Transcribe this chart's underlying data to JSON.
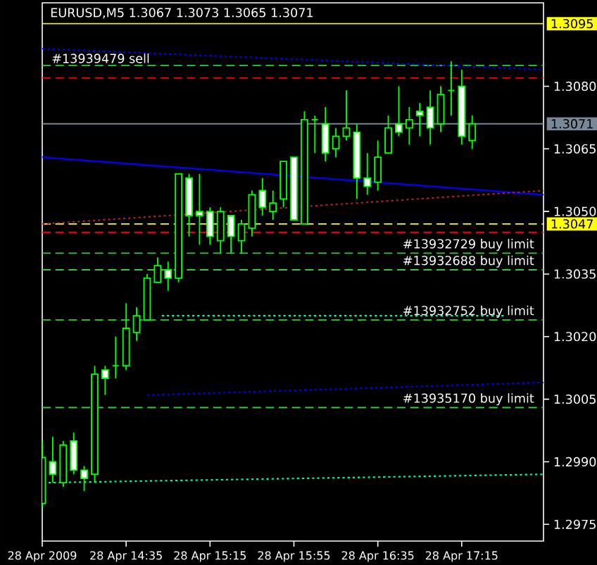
{
  "chart_data": {
    "type": "candlestick",
    "title": "EURUSD,M5  1.3067 1.3073 1.3065 1.3071",
    "color": "#00ff00",
    "x": [
      "2009-04-28T13:55",
      "2009-04-28T14:00",
      "2009-04-28T14:05",
      "2009-04-28T14:10",
      "2009-04-28T14:15",
      "2009-04-28T14:20",
      "2009-04-28T14:25",
      "2009-04-28T14:30",
      "2009-04-28T14:35",
      "2009-04-28T14:40",
      "2009-04-28T14:45",
      "2009-04-28T14:50",
      "2009-04-28T14:55",
      "2009-04-28T15:00",
      "2009-04-28T15:05",
      "2009-04-28T15:10",
      "2009-04-28T15:15",
      "2009-04-28T15:20",
      "2009-04-28T15:25",
      "2009-04-28T15:30",
      "2009-04-28T15:35",
      "2009-04-28T15:40",
      "2009-04-28T15:45",
      "2009-04-28T15:50",
      "2009-04-28T15:55",
      "2009-04-28T16:00",
      "2009-04-28T16:05",
      "2009-04-28T16:10",
      "2009-04-28T16:15",
      "2009-04-28T16:20",
      "2009-04-28T16:25",
      "2009-04-28T16:30",
      "2009-04-28T16:35",
      "2009-04-28T16:40",
      "2009-04-28T16:45",
      "2009-04-28T16:50",
      "2009-04-28T16:55",
      "2009-04-28T17:00",
      "2009-04-28T17:05",
      "2009-04-28T17:10",
      "2009-04-28T17:15",
      "2009-04-28T17:20"
    ],
    "ohlc": [
      [
        1.298,
        1.2995,
        1.2979,
        1.2991
      ],
      [
        1.299,
        1.2996,
        1.2985,
        1.2987
      ],
      [
        1.2985,
        1.2995,
        1.2984,
        1.2994
      ],
      [
        1.2995,
        1.2997,
        1.2987,
        1.2988
      ],
      [
        1.2988,
        1.2989,
        1.2983,
        1.2986
      ],
      [
        1.2987,
        1.3013,
        1.2985,
        1.3011
      ],
      [
        1.3012,
        1.3013,
        1.3006,
        1.301
      ],
      [
        1.3013,
        1.302,
        1.301,
        1.3013
      ],
      [
        1.3013,
        1.3028,
        1.3012,
        1.3022
      ],
      [
        1.3021,
        1.3027,
        1.3019,
        1.3025
      ],
      [
        1.3024,
        1.3035,
        1.3024,
        1.3034
      ],
      [
        1.3033,
        1.3039,
        1.3033,
        1.3037
      ],
      [
        1.3036,
        1.3038,
        1.3031,
        1.3034
      ],
      [
        1.3034,
        1.3059,
        1.3033,
        1.3059
      ],
      [
        1.3058,
        1.3059,
        1.3044,
        1.3049
      ],
      [
        1.305,
        1.3059,
        1.3042,
        1.3049
      ],
      [
        1.305,
        1.3051,
        1.3042,
        1.3044
      ],
      [
        1.3043,
        1.3051,
        1.304,
        1.305
      ],
      [
        1.3049,
        1.3049,
        1.304,
        1.3044
      ],
      [
        1.3043,
        1.3048,
        1.304,
        1.3047
      ],
      [
        1.3046,
        1.3055,
        1.3044,
        1.3054
      ],
      [
        1.3055,
        1.3058,
        1.3049,
        1.3051
      ],
      [
        1.305,
        1.3055,
        1.3048,
        1.3052
      ],
      [
        1.3053,
        1.3062,
        1.3051,
        1.3062
      ],
      [
        1.3063,
        1.3063,
        1.3048,
        1.3048
      ],
      [
        1.3047,
        1.3074,
        1.3047,
        1.3072
      ],
      [
        1.3072,
        1.3073,
        1.3064,
        1.3072
      ],
      [
        1.3071,
        1.3075,
        1.3062,
        1.3064
      ],
      [
        1.3065,
        1.307,
        1.3063,
        1.3068
      ],
      [
        1.3068,
        1.3079,
        1.3067,
        1.307
      ],
      [
        1.3069,
        1.3071,
        1.3053,
        1.3058
      ],
      [
        1.3058,
        1.3064,
        1.3054,
        1.3056
      ],
      [
        1.3057,
        1.3067,
        1.3055,
        1.3063
      ],
      [
        1.3064,
        1.3073,
        1.3064,
        1.307
      ],
      [
        1.3071,
        1.308,
        1.3068,
        1.3069
      ],
      [
        1.307,
        1.3075,
        1.3066,
        1.3072
      ],
      [
        1.3074,
        1.3076,
        1.3068,
        1.3073
      ],
      [
        1.3075,
        1.3079,
        1.3066,
        1.307
      ],
      [
        1.3071,
        1.308,
        1.3069,
        1.3078
      ],
      [
        1.3079,
        1.3086,
        1.3073,
        1.3079
      ],
      [
        1.308,
        1.3084,
        1.3066,
        1.3068
      ],
      [
        1.3067,
        1.3073,
        1.3065,
        1.3071
      ]
    ],
    "series": [
      {
        "type": "line",
        "color": "#0000ff",
        "line_style": "solid",
        "x": [
          "2009-04-28T13:55",
          "2009-04-28T17:54"
        ],
        "values": [
          1.3063,
          1.3054
        ]
      },
      {
        "type": "line",
        "color": "#0000ff",
        "line_style": "dotted",
        "x": [
          "2009-04-28T13:55",
          "2009-04-28T17:54"
        ],
        "values": [
          1.3089,
          1.3084
        ]
      },
      {
        "type": "line",
        "color": "#b22222",
        "line_style": "dotted",
        "x": [
          "2009-04-28T13:55",
          "2009-04-28T17:54"
        ],
        "values": [
          1.3047,
          1.3055
        ]
      },
      {
        "type": "line",
        "color": "#00fa9a",
        "line_style": "dotted",
        "x": [
          "2009-04-28T14:52",
          "2009-04-28T17:36"
        ],
        "values": [
          1.3025,
          1.3025
        ]
      },
      {
        "type": "line",
        "color": "#0000ff",
        "line_style": "dotted",
        "x": [
          "2009-04-28T14:45",
          "2009-04-28T17:54"
        ],
        "values": [
          1.3006,
          1.3009
        ]
      },
      {
        "type": "line",
        "color": "#00fa9a",
        "line_style": "dotted",
        "x": [
          "2009-04-28T13:58",
          "2009-04-28T17:54"
        ],
        "values": [
          1.2985,
          1.2987
        ]
      }
    ],
    "ref_lines": [
      {
        "axis": "y",
        "value": 1.3095,
        "color": "#ffff00",
        "line_style": "solid"
      },
      {
        "axis": "y",
        "value": 1.3085,
        "label": "#13939479 sell",
        "color": "#32cd32",
        "line_style": "dashed"
      },
      {
        "axis": "y",
        "value": 1.3082,
        "color": "#ff0000",
        "line_style": "dashed"
      },
      {
        "axis": "y",
        "value": 1.3071,
        "color": "#778899",
        "line_style": "solid"
      },
      {
        "axis": "y",
        "value": 1.3047,
        "color": "#ffff00",
        "line_style": "dashed"
      },
      {
        "axis": "y",
        "value": 1.3045,
        "color": "#ff0000",
        "line_style": "dashed"
      },
      {
        "axis": "y",
        "value": 1.304,
        "label": "#13932729 buy limit",
        "color": "#32cd32",
        "line_style": "dashed"
      },
      {
        "axis": "y",
        "value": 1.3036,
        "label": "#13932688 buy limit",
        "color": "#32cd32",
        "line_style": "dashed"
      },
      {
        "axis": "y",
        "value": 1.3024,
        "label": "#13932752 buy limit",
        "color": "#32cd32",
        "line_style": "dashed"
      },
      {
        "axis": "y",
        "value": 1.3003,
        "label": "#13935170 buy limit",
        "color": "#32cd32",
        "line_style": "dashed"
      }
    ],
    "xlim": [
      "2009-04-28T13:55",
      "2009-04-28T17:54"
    ],
    "xticks": [
      {
        "value": "2009-04-28T13:55",
        "label": "28 Apr 2009"
      },
      {
        "value": "2009-04-28T14:35",
        "label": "28 Apr 14:35"
      },
      {
        "value": "2009-04-28T15:15",
        "label": "28 Apr 15:15"
      },
      {
        "value": "2009-04-28T15:55",
        "label": "28 Apr 15:55"
      },
      {
        "value": "2009-04-28T16:35",
        "label": "28 Apr 16:35"
      },
      {
        "value": "2009-04-28T17:15",
        "label": "28 Apr 17:15"
      }
    ],
    "ylim": [
      1.2971,
      1.31
    ],
    "yticks": [
      {
        "value": 1.2975,
        "label": "1.2975"
      },
      {
        "value": 1.299,
        "label": "1.2990"
      },
      {
        "value": 1.3005,
        "label": "1.3005"
      },
      {
        "value": 1.302,
        "label": "1.3020"
      },
      {
        "value": 1.3035,
        "label": "1.3035"
      },
      {
        "value": 1.305,
        "label": "1.3050"
      },
      {
        "value": 1.3065,
        "label": "1.3065"
      },
      {
        "value": 1.308,
        "label": "1.3080"
      },
      {
        "value": 1.3095,
        "label": "1.3095"
      },
      {
        "value": 1.3071,
        "label": "1.3071"
      },
      {
        "value": 1.3047,
        "label": "1.3047"
      }
    ]
  }
}
